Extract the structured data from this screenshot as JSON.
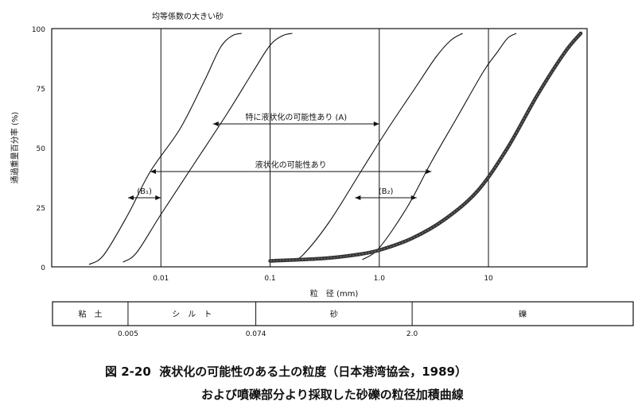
{
  "chart_data": {
    "type": "line",
    "top_label": "均等係数の大きい砂",
    "xlabel": "粒　径 (mm)",
    "ylabel": "通過重量百分率 (%)",
    "x_scale": "log",
    "xlim": [
      0.001,
      80
    ],
    "ylim": [
      0,
      100
    ],
    "x_ticks": [
      "0.01",
      "0.1",
      "1.0",
      "10"
    ],
    "y_ticks": [
      "100",
      "75",
      "50",
      "25",
      "0"
    ],
    "x_gridlines": [
      0.01,
      0.1,
      1.0,
      10
    ],
    "series": [
      {
        "style": "thin",
        "points": [
          [
            0.0022,
            1
          ],
          [
            0.003,
            5
          ],
          [
            0.005,
            22
          ],
          [
            0.008,
            40
          ],
          [
            0.015,
            58
          ],
          [
            0.025,
            78
          ],
          [
            0.035,
            92
          ],
          [
            0.045,
            97
          ],
          [
            0.055,
            98
          ]
        ]
      },
      {
        "style": "thin",
        "points": [
          [
            0.0045,
            2
          ],
          [
            0.006,
            6
          ],
          [
            0.01,
            22
          ],
          [
            0.02,
            43
          ],
          [
            0.04,
            64
          ],
          [
            0.07,
            82
          ],
          [
            0.1,
            93
          ],
          [
            0.13,
            97
          ],
          [
            0.16,
            98
          ]
        ]
      },
      {
        "style": "thin",
        "points": [
          [
            0.16,
            3
          ],
          [
            0.2,
            5
          ],
          [
            0.35,
            19
          ],
          [
            0.7,
            41
          ],
          [
            1.2,
            58
          ],
          [
            2.2,
            76
          ],
          [
            3.3,
            88
          ],
          [
            4.5,
            95
          ],
          [
            5.8,
            98
          ]
        ]
      },
      {
        "style": "thin",
        "points": [
          [
            0.7,
            3
          ],
          [
            1.0,
            8
          ],
          [
            1.8,
            25
          ],
          [
            3.0,
            44
          ],
          [
            5.2,
            63
          ],
          [
            9.0,
            82
          ],
          [
            12,
            90
          ],
          [
            15,
            96
          ],
          [
            18,
            98
          ]
        ]
      },
      {
        "style": "thick",
        "points": [
          [
            0.1,
            2.5
          ],
          [
            0.3,
            3.5
          ],
          [
            0.6,
            5
          ],
          [
            1.0,
            7
          ],
          [
            2.0,
            12
          ],
          [
            4.0,
            20
          ],
          [
            8.0,
            32
          ],
          [
            15,
            50
          ],
          [
            28,
            72
          ],
          [
            50,
            90
          ],
          [
            70,
            98
          ]
        ]
      }
    ],
    "annotations": [
      {
        "label": "特に液状化の可能性あり (A)",
        "x_from": 0.03,
        "x_to": 1.0,
        "y": 60
      },
      {
        "label": "液状化の可能性あり",
        "x_from": 0.008,
        "x_to": 3.0,
        "y": 40
      },
      {
        "label": "(B₁)",
        "x_from": 0.005,
        "x_to": 0.01,
        "y": 29
      },
      {
        "label": "(B₂)",
        "x_from": 0.6,
        "x_to": 2.2,
        "y": 29
      }
    ],
    "classification": {
      "labels": [
        "粘　土",
        "シ　ル　ト",
        "砂",
        "礫"
      ],
      "boundaries": [
        "0.005",
        "0.074",
        "2.0"
      ]
    }
  },
  "caption": {
    "number": "図 2-20",
    "line1": "液状化の可能性のある土の粒度（日本港湾協会，1989）",
    "line2": "および噴礫部分より採取した砂礫の粒径加積曲線"
  }
}
